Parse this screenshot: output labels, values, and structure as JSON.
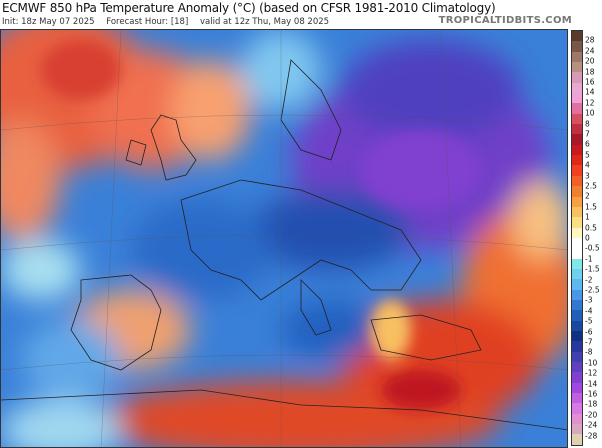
{
  "header": {
    "title": "ECMWF 850 hPa Temperature Anomaly (°C) (based on CFSR 1981-2010 Climatology)",
    "init": "Init: 18z May 07 2025",
    "forecast_hour": "Forecast Hour: [18]",
    "valid": "valid at 12z Thu, May 08 2025",
    "brand": "TROPICALTIDBITS.COM"
  },
  "colorbar": {
    "labels": [
      "28",
      "24",
      "20",
      "18",
      "16",
      "14",
      "12",
      "10",
      "8",
      "7",
      "6",
      "5",
      "4",
      "3",
      "2.5",
      "2",
      "1.5",
      "1",
      "0.5",
      "0",
      "-0.5",
      "-1",
      "-1.5",
      "-2",
      "-2.5",
      "-3",
      "-4",
      "-5",
      "-6",
      "-7",
      "-8",
      "-10",
      "-12",
      "-14",
      "-16",
      "-18",
      "-20",
      "-24",
      "-28"
    ],
    "colors": [
      "#5a3a2a",
      "#7a5848",
      "#a07868",
      "#b89080",
      "#d898b8",
      "#e8a8d0",
      "#f0a0d8",
      "#e070a0",
      "#d85060",
      "#c03040",
      "#a81828",
      "#c81820",
      "#e02818",
      "#f04020",
      "#f06028",
      "#f08030",
      "#f8a040",
      "#f8c060",
      "#f8e088",
      "#fff8c0",
      "#ffffff",
      "#ffffff",
      "#80e8e8",
      "#70d0f0",
      "#60b8f0",
      "#4898e8",
      "#3078d0",
      "#2060b8",
      "#1848a0",
      "#103080",
      "#2838a0",
      "#4040b0",
      "#6040c0",
      "#8040d0",
      "#a048e0",
      "#c060e0",
      "#d878e8",
      "#e090d0",
      "#d8a8c0",
      "#e0d0b0"
    ]
  }
}
